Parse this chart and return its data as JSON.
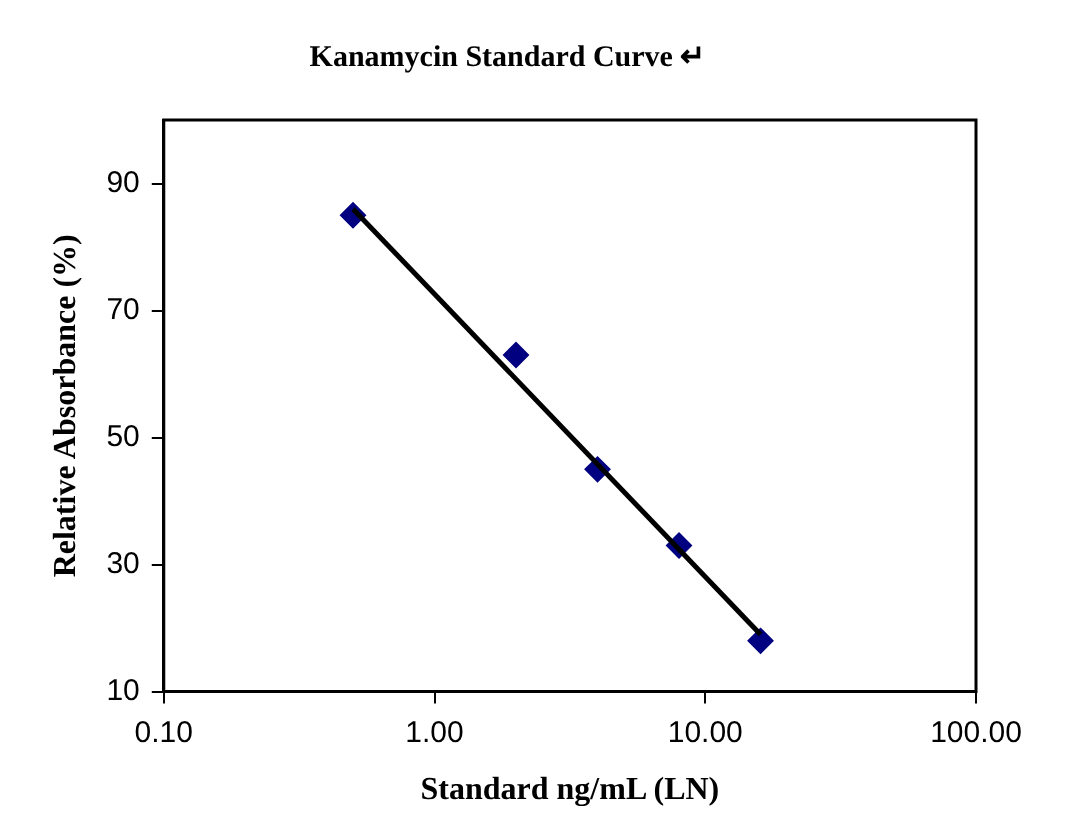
{
  "chart_data": {
    "type": "scatter",
    "title": "Kanamycin Standard Curve ↵",
    "xlabel": "Standard ng/mL (LN)",
    "ylabel": "Relative Absorbance (%)",
    "log": "x",
    "xlim": [
      0.1,
      100
    ],
    "xticks": [
      {
        "value": 0.1,
        "label": "0.10"
      },
      {
        "value": 1,
        "label": "1.00"
      },
      {
        "value": 10,
        "label": "10.00"
      },
      {
        "value": 100,
        "label": "100.00"
      }
    ],
    "ylim": [
      10,
      100
    ],
    "yticks": [
      10,
      30,
      50,
      70,
      90
    ],
    "grid": false,
    "legend": false,
    "series": [
      {
        "type": "scatter",
        "color": "#000080",
        "marker": "diamond",
        "x": [
          0.5,
          2,
          4,
          8,
          16
        ],
        "values": [
          85,
          63,
          45,
          33,
          18
        ]
      },
      {
        "type": "line",
        "color": "#000000",
        "marker": "none",
        "line_style": "solid",
        "x": [
          0.5,
          16
        ],
        "values": [
          86,
          19
        ]
      }
    ]
  }
}
